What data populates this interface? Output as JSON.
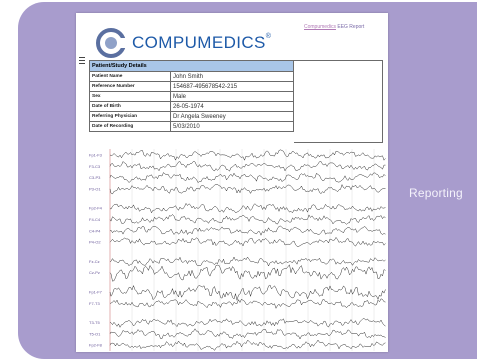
{
  "logo": {
    "icon": "compumedics-logo-icon",
    "text": "COMPUMEDICS",
    "trademark": "®"
  },
  "report_title": {
    "brand": "Compumedics",
    "suffix": " EEG Report"
  },
  "patient_table": {
    "header": "Patient/Study Details",
    "rows": [
      {
        "label": "Patient Name",
        "value": "John Smith"
      },
      {
        "label": "Reference Number",
        "value": "154687-495678542-215"
      },
      {
        "label": "Sex",
        "value": "Male"
      },
      {
        "label": "Date of Birth",
        "value": "26-05-1974"
      },
      {
        "label": "Referring Physician",
        "value": "Dr Angela Sweeney"
      },
      {
        "label": "Date of Recording",
        "value": "5/03/2010"
      }
    ]
  },
  "eeg": {
    "channels": [
      "Fp1-F3",
      "F3-C3",
      "C3-P3",
      "P3-O1",
      "Fp2-F4",
      "F4-C4",
      "C4-P4",
      "P4-O2",
      "Fz-Cz",
      "Cz-Pz",
      "Fp1-F7",
      "F7-T3",
      "T3-T5",
      "T5-O1",
      "Fp2-F8",
      "F8-T4"
    ],
    "trace_color": "#1b1b1b",
    "grid_color": "#d6d6d6",
    "marker_color": "#e0a0a0"
  },
  "side_label": "Reporting",
  "colors": {
    "panel": "#a89ccd",
    "brand_blue": "#1e5aa8",
    "table_header": "#a9c6e8"
  }
}
